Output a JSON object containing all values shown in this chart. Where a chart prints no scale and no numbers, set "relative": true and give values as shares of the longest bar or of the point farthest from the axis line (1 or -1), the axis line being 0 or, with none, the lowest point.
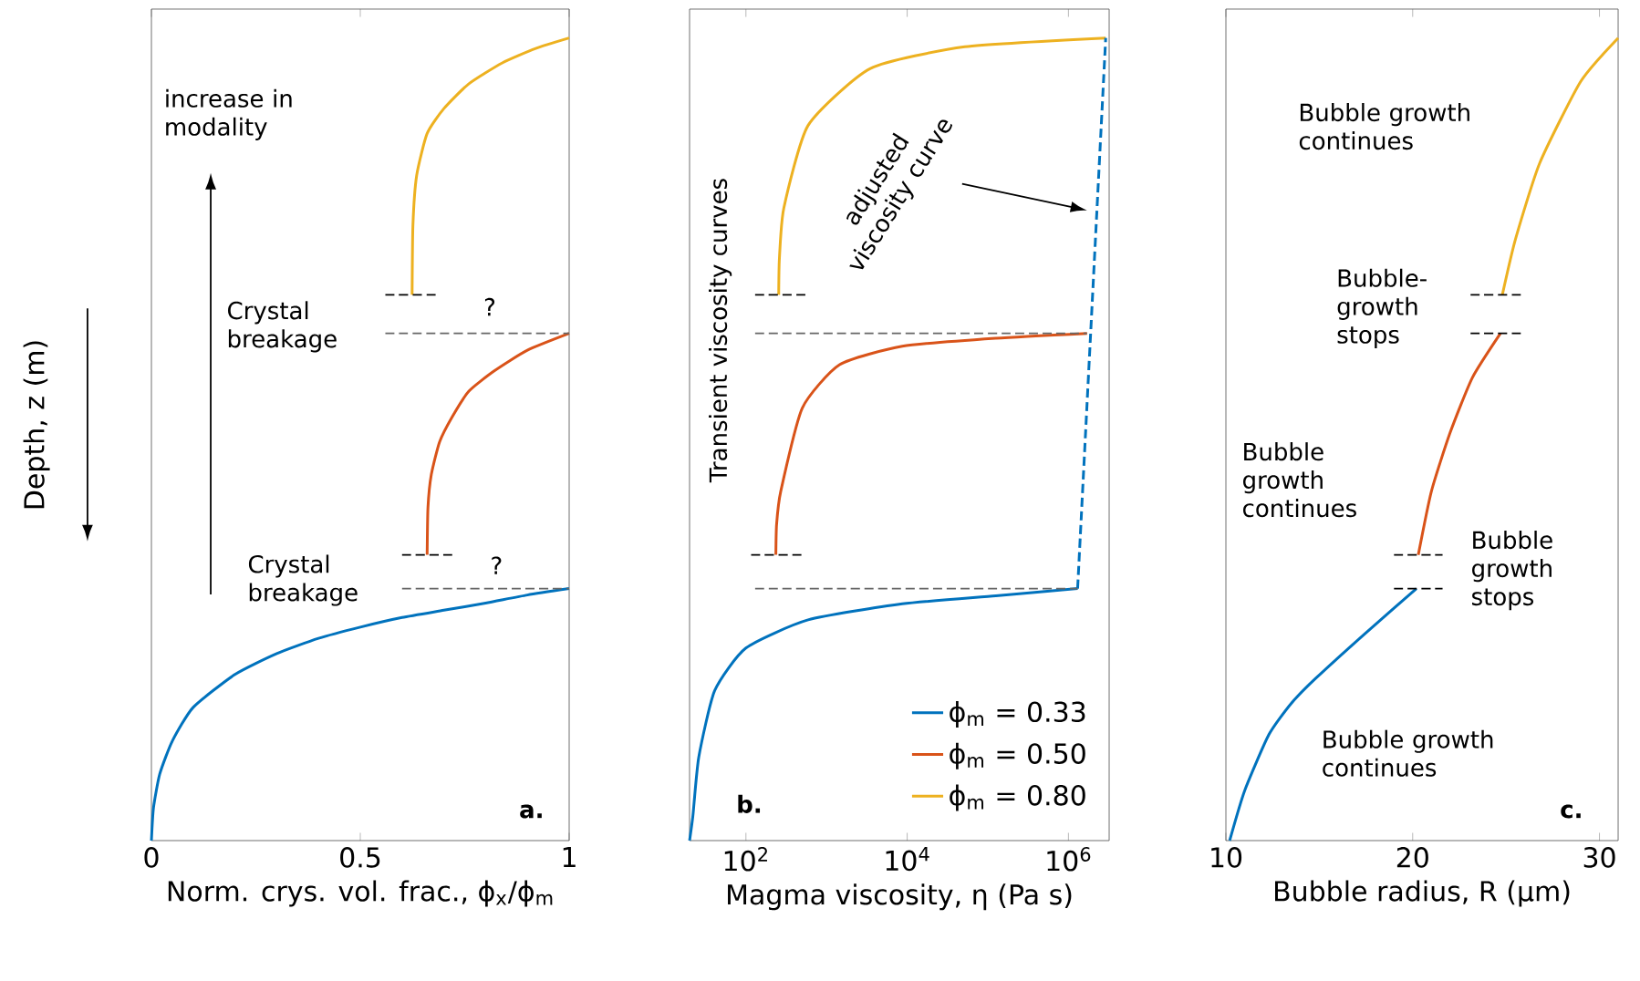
{
  "chart_data": [
    {
      "type": "line",
      "relative": true,
      "tick_labels": "x",
      "xlabel": "Norm. crys. vol. frac., ϕ$_{x}$/ϕ$_{m}$",
      "ylabel": "Depth, z (m)",
      "xlim": [
        0,
        1
      ],
      "xticks": [
        0,
        0.5,
        1
      ],
      "annotations": [
        "increase in modality",
        "Crystal breakage",
        "?",
        "Crystal breakage",
        "?",
        "a."
      ],
      "series": [
        {
          "color": "#0072bd",
          "x": [
            0,
            0.005,
            0.02,
            0.05,
            0.1,
            0.2,
            0.3,
            0.4,
            0.5,
            0.6,
            0.7,
            0.8,
            0.9,
            1
          ],
          "values": [
            0,
            0.041,
            0.083,
            0.124,
            0.166,
            0.207,
            0.233,
            0.252,
            0.266,
            0.278,
            0.287,
            0.296,
            0.306,
            0.314
          ]
        },
        {
          "color": "#d95319",
          "x": [
            0.66,
            0.662,
            0.67,
            0.69,
            0.72,
            0.76,
            0.82,
            0.9,
            1
          ],
          "values": [
            0.356,
            0.415,
            0.456,
            0.497,
            0.528,
            0.56,
            0.585,
            0.611,
            0.632
          ]
        },
        {
          "color": "#edb120",
          "x": [
            0.624,
            0.626,
            0.635,
            0.66,
            0.7,
            0.76,
            0.84,
            0.92,
            1
          ],
          "values": [
            0.68,
            0.767,
            0.829,
            0.881,
            0.912,
            0.943,
            0.969,
            0.987,
            1
          ]
        },
        {
          "color": "#666666",
          "line_style": "dashed",
          "x": [
            0.56,
            1
          ],
          "values": [
            0.632,
            0.632
          ]
        },
        {
          "color": "#666666",
          "line_style": "dashed",
          "x": [
            0.6,
            1
          ],
          "values": [
            0.314,
            0.314
          ]
        },
        {
          "color": "#000000",
          "line_style": "dashed",
          "x": [
            0.56,
            0.69
          ],
          "values": [
            0.68,
            0.68
          ]
        },
        {
          "color": "#000000",
          "line_style": "dashed",
          "x": [
            0.6,
            0.72
          ],
          "values": [
            0.356,
            0.356
          ]
        }
      ]
    },
    {
      "type": "line",
      "relative": true,
      "tick_labels": "x",
      "log": "x",
      "legend": "bottom right",
      "xlabel": "Magma viscosity, η (Pa s)",
      "xlim": [
        20,
        3200000
      ],
      "xticks": [
        {
          "value": 100,
          "label": "10$^{2}$"
        },
        {
          "value": 10000,
          "label": "10$^{4}$"
        },
        {
          "value": 1000000,
          "label": "10$^{6}$"
        }
      ],
      "annotations": [
        "Transient viscosity curves",
        "adjusted viscosity curve",
        "b."
      ],
      "series": [
        {
          "name": "ϕ$_{m}$ = 0.33",
          "color": "#0072bd",
          "x": [
            20,
            22,
            26,
            41,
            100,
            590,
            8700,
            126000,
            1300000
          ],
          "values": [
            0,
            0.031,
            0.104,
            0.187,
            0.24,
            0.275,
            0.295,
            0.305,
            0.314
          ]
        },
        {
          "name": "ϕ$_{m}$ = 0.50",
          "color": "#d95319",
          "x": [
            235,
            240,
            270,
            500,
            1450,
            8700,
            126000,
            1700000
          ],
          "values": [
            0.356,
            0.394,
            0.435,
            0.539,
            0.593,
            0.616,
            0.626,
            0.632
          ]
        },
        {
          "name": "ϕ$_{m}$ = 0.80",
          "color": "#edb120",
          "x": [
            255,
            260,
            295,
            590,
            3500,
            52000,
            2900000
          ],
          "values": [
            0.68,
            0.725,
            0.788,
            0.891,
            0.962,
            0.989,
            1
          ]
        },
        {
          "color": "#0072bd",
          "line_style": "dashed",
          "x": [
            1300000,
            2900000
          ],
          "values": [
            0.314,
            1
          ]
        },
        {
          "color": "#666666",
          "line_style": "dashed",
          "x": [
            130,
            1700000
          ],
          "values": [
            0.632,
            0.632
          ]
        },
        {
          "color": "#666666",
          "line_style": "dashed",
          "x": [
            130,
            1300000
          ],
          "values": [
            0.314,
            0.314
          ]
        },
        {
          "color": "#000000",
          "line_style": "dashed",
          "x": [
            130,
            590
          ],
          "values": [
            0.68,
            0.68
          ]
        },
        {
          "color": "#000000",
          "line_style": "dashed",
          "x": [
            116,
            500
          ],
          "values": [
            0.356,
            0.356
          ]
        }
      ]
    },
    {
      "type": "line",
      "relative": true,
      "tick_labels": "x",
      "xlabel": "Bubble radius, R (μm)",
      "xlim": [
        10,
        31
      ],
      "xticks": [
        10,
        20,
        30
      ],
      "annotations": [
        "Bubble growth continues",
        "Bubble-growth stops",
        "Bubble growth continues",
        "Bubble growth stops",
        "Bubble growth continues",
        "c."
      ],
      "series": [
        {
          "color": "#0072bd",
          "x": [
            10.2,
            11,
            12.3,
            13.5,
            14.8,
            17.4,
            20.2
          ],
          "values": [
            0,
            0.062,
            0.132,
            0.171,
            0.202,
            0.257,
            0.314
          ]
        },
        {
          "color": "#d95319",
          "x": [
            20.3,
            21,
            22,
            23.2,
            24.7
          ],
          "values": [
            0.356,
            0.435,
            0.508,
            0.577,
            0.632
          ]
        },
        {
          "color": "#edb120",
          "x": [
            24.8,
            25.5,
            26.8,
            29,
            31
          ],
          "values": [
            0.68,
            0.749,
            0.844,
            0.946,
            1
          ]
        },
        {
          "color": "#000000",
          "line_style": "dashed",
          "x": [
            23.1,
            25.9
          ],
          "values": [
            0.68,
            0.68
          ]
        },
        {
          "color": "#000000",
          "line_style": "dashed",
          "x": [
            23.1,
            25.9
          ],
          "values": [
            0.632,
            0.632
          ]
        },
        {
          "color": "#000000",
          "line_style": "dashed",
          "x": [
            19.0,
            21.6
          ],
          "values": [
            0.356,
            0.356
          ]
        },
        {
          "color": "#000000",
          "line_style": "dashed",
          "x": [
            19.0,
            21.6
          ],
          "values": [
            0.314,
            0.314
          ]
        }
      ]
    }
  ]
}
